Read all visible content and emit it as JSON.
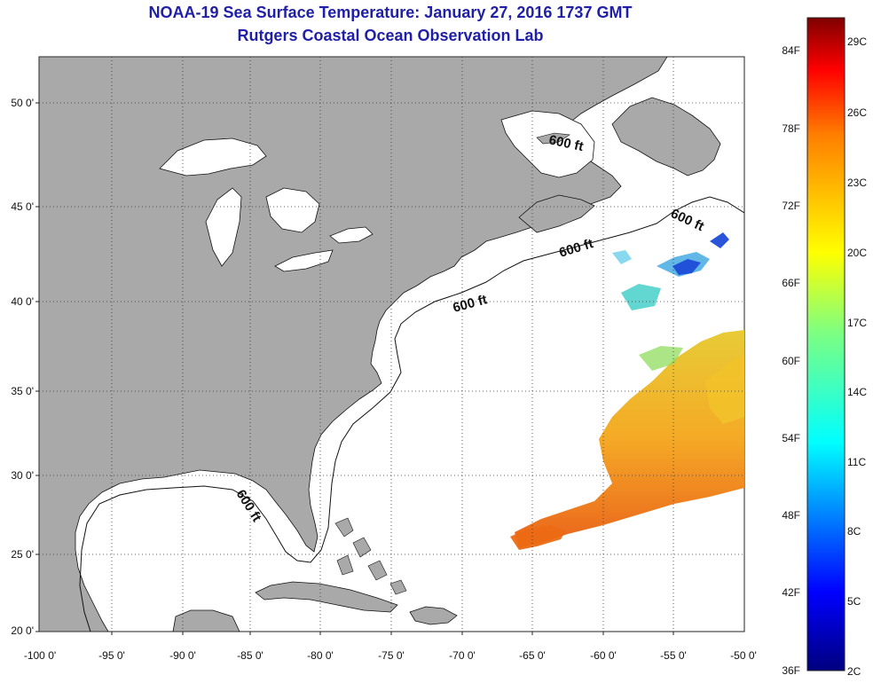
{
  "title": {
    "line1": "NOAA-19 Sea Surface Temperature:  January 27, 2016 1737 GMT",
    "line2": "Rutgers Coastal Ocean Observation Lab"
  },
  "axes": {
    "lat_labels": [
      "50 0'",
      "45 0'",
      "40 0'",
      "35 0'",
      "30 0'",
      "25 0'",
      "20 0'"
    ],
    "lon_labels": [
      "-100 0'",
      "-95 0'",
      "-90 0'",
      "-85 0'",
      "-80 0'",
      "-75 0'",
      "-70 0'",
      "-65 0'",
      "-60 0'",
      "-55 0'",
      "-50 0'"
    ],
    "lat_range": [
      20,
      52.5
    ],
    "lon_range": [
      -100,
      -50
    ]
  },
  "contour_labels": [
    "600 ft",
    "600 ft",
    "600 ft",
    "600 ft",
    "600 ft"
  ],
  "colorbar": {
    "f_labels": [
      "84F",
      "78F",
      "72F",
      "66F",
      "60F",
      "54F",
      "48F",
      "42F",
      "36F"
    ],
    "c_labels": [
      "29C",
      "26C",
      "23C",
      "20C",
      "17C",
      "14C",
      "11C",
      "8C",
      "5C",
      "2C"
    ]
  },
  "colors": {
    "land": "#a9a9a9",
    "ocean": "#ffffff",
    "title": "#1f1fa8"
  }
}
